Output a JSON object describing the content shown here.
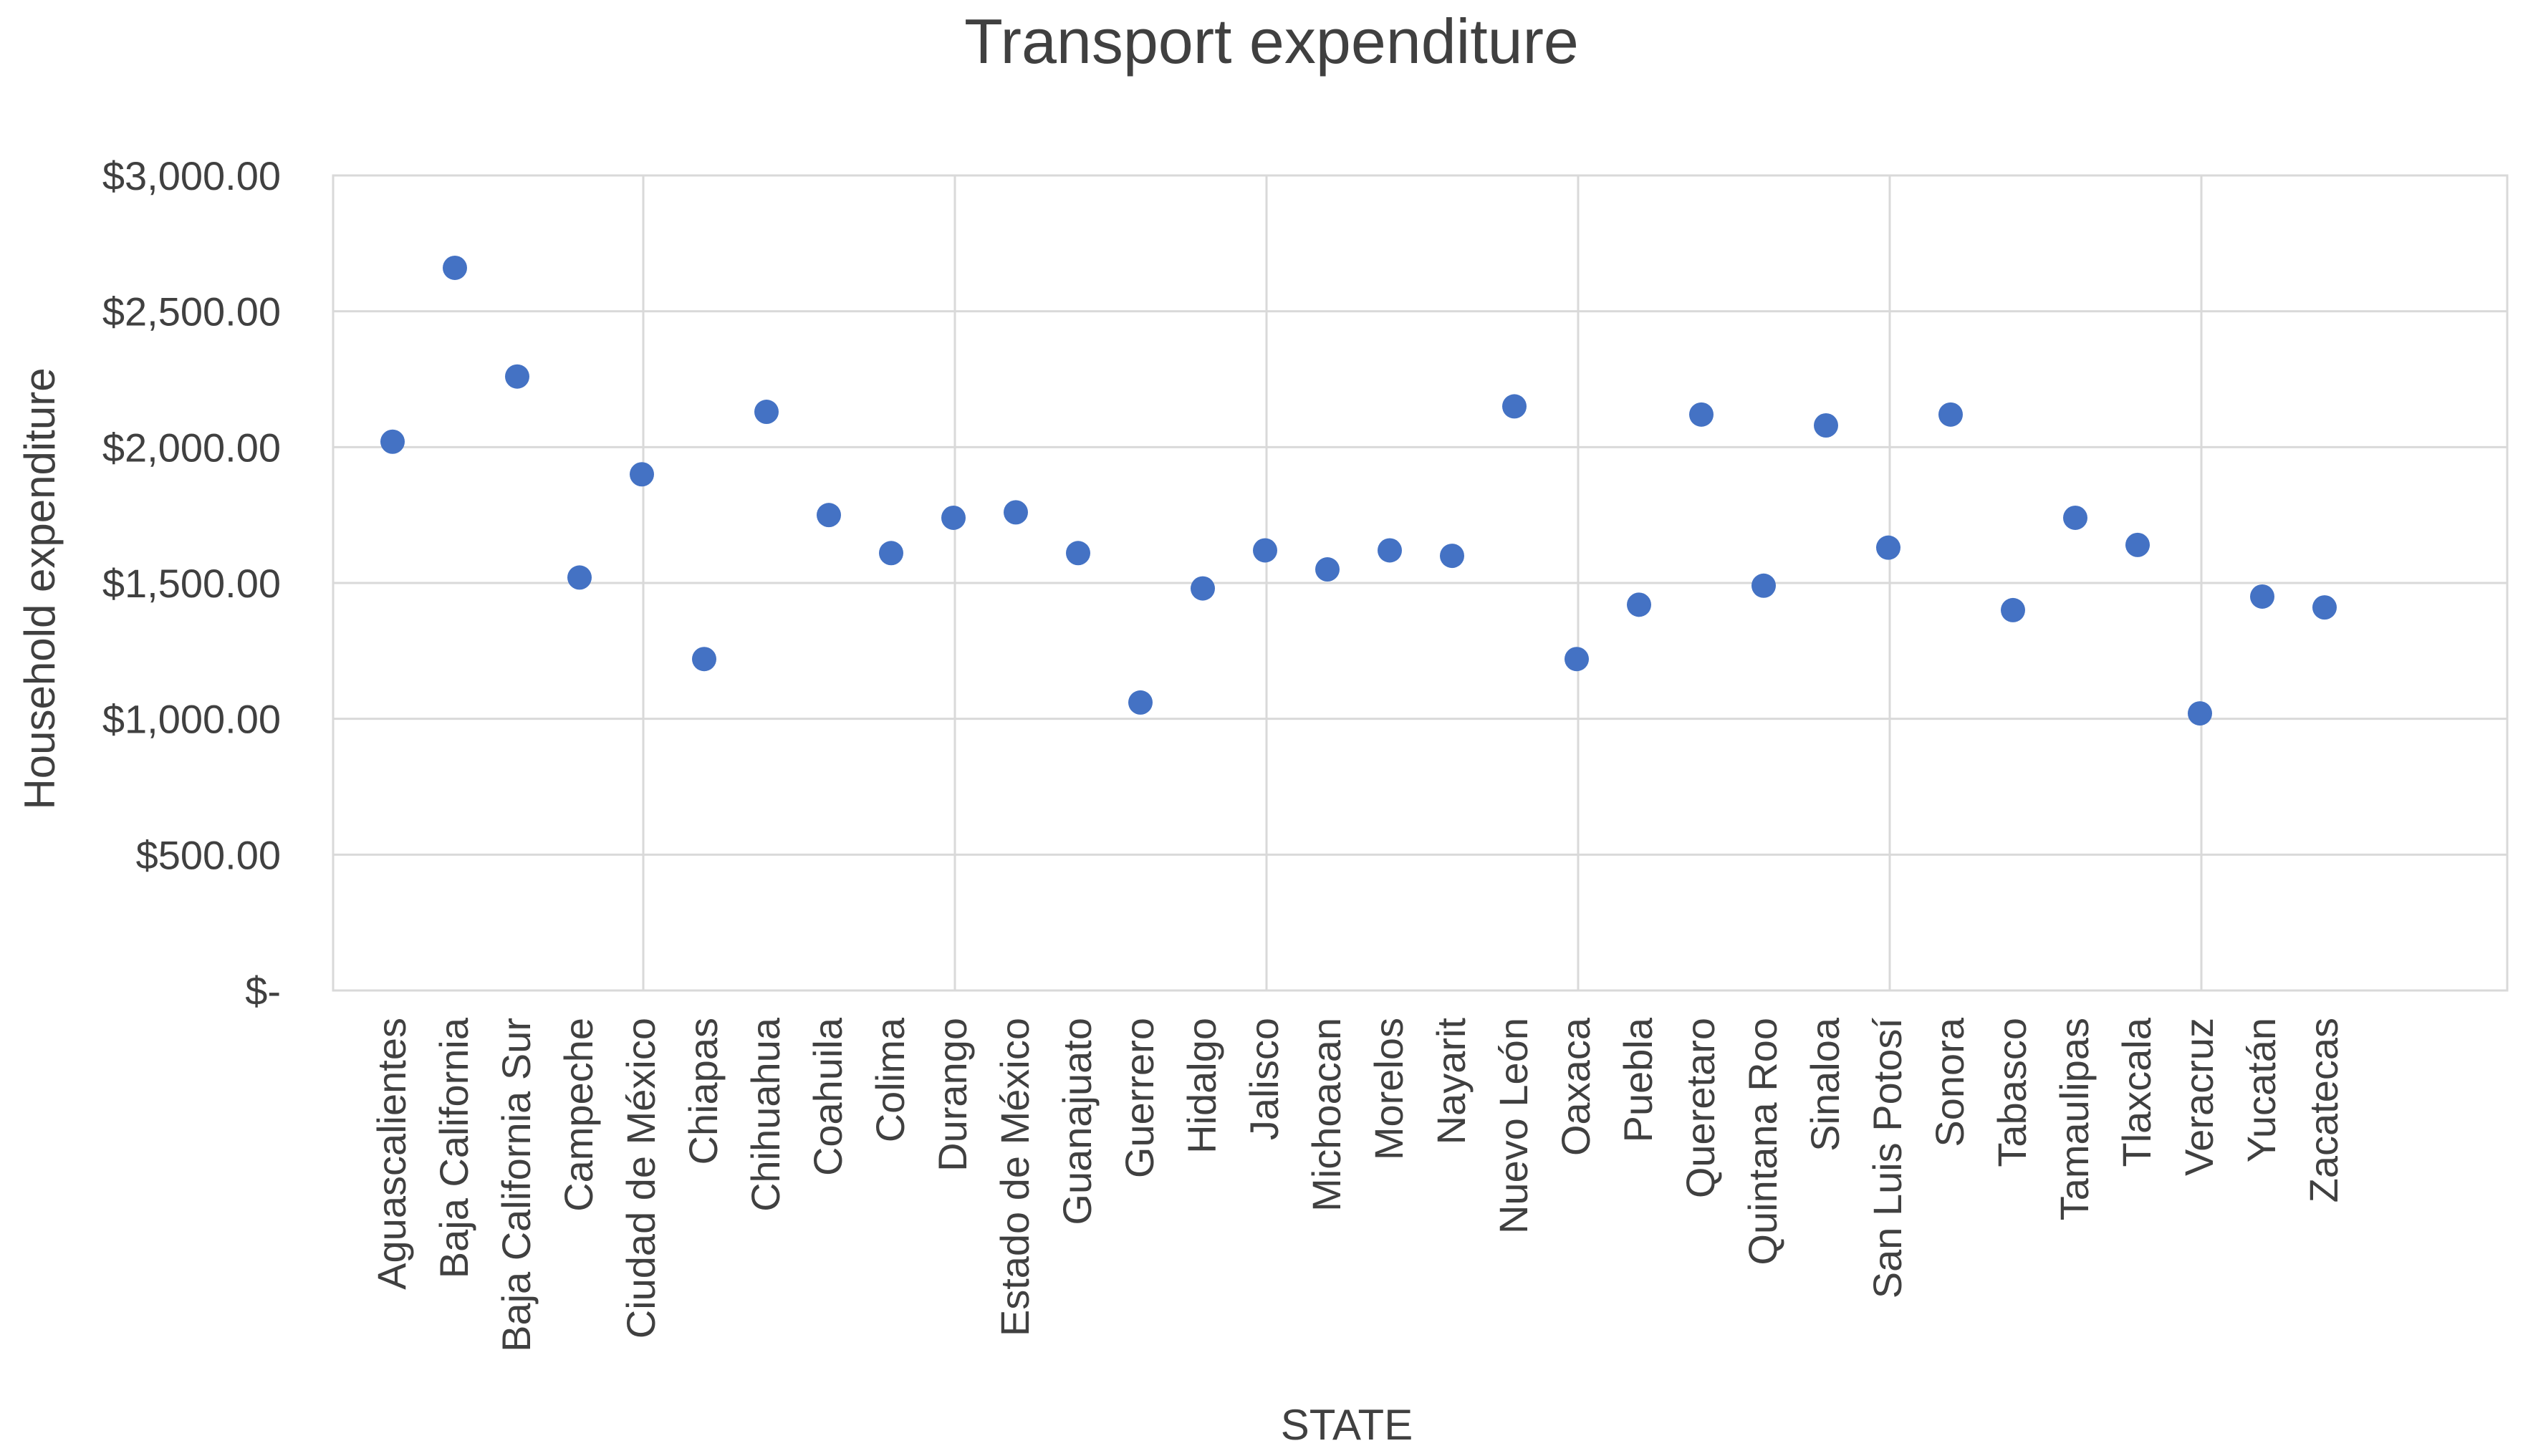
{
  "chart_data": {
    "type": "scatter",
    "title": "Transport expenditure",
    "xlabel": "STATE",
    "ylabel": "Household expenditure",
    "ylim": [
      0,
      3000
    ],
    "y_ticks": [
      {
        "value": 0,
        "label": "$-"
      },
      {
        "value": 500,
        "label": "$500.00"
      },
      {
        "value": 1000,
        "label": "$1,000.00"
      },
      {
        "value": 1500,
        "label": "$1,500.00"
      },
      {
        "value": 2000,
        "label": "$2,000.00"
      },
      {
        "value": 2500,
        "label": "$2,500.00"
      },
      {
        "value": 3000,
        "label": "$3,000.00"
      }
    ],
    "grid": true,
    "categories": [
      "Aguascalientes",
      "Baja California",
      "Baja California Sur",
      "Campeche",
      "Ciudad de México",
      "Chiapas",
      "Chihuahua",
      "Coahuila",
      "Colima",
      "Durango",
      "Estado de México",
      "Guanajuato",
      "Guerrero",
      "Hidalgo",
      "Jalisco",
      "Michoacan",
      "Morelos",
      "Nayarit",
      "Nuevo León",
      "Oaxaca",
      "Puebla",
      "Queretaro",
      "Quintana Roo",
      "Sinaloa",
      "San Luis Potosí",
      "Sonora",
      "Tabasco",
      "Tamaulipas",
      "Tlaxcala",
      "Veracruz",
      "Yucatán",
      "Zacatecas"
    ],
    "values": [
      2020,
      2660,
      2260,
      1520,
      1900,
      1220,
      2130,
      1750,
      1610,
      1740,
      1760,
      1610,
      1060,
      1480,
      1620,
      1550,
      1620,
      1600,
      2150,
      1220,
      1420,
      2120,
      1490,
      2080,
      1630,
      2120,
      1400,
      1740,
      1640,
      1020,
      1450,
      1410
    ],
    "series_color": "#4472c4"
  }
}
